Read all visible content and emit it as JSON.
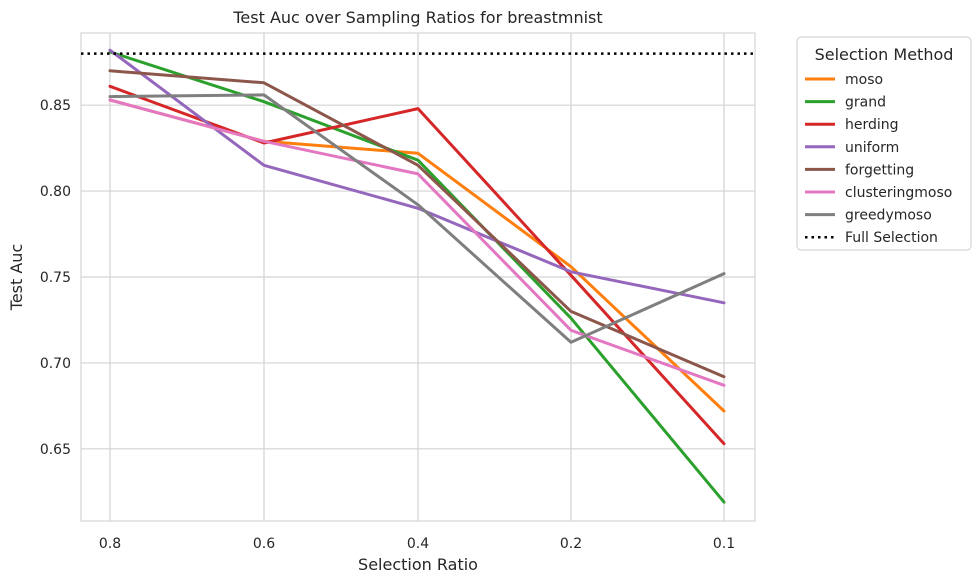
{
  "chart_data": {
    "type": "line",
    "title": "Test Auc over Sampling Ratios for breastmnist",
    "xlabel": "Selection Ratio",
    "ylabel": "Test Auc",
    "x": [
      "0.8",
      "0.6",
      "0.4",
      "0.2",
      "0.1"
    ],
    "ylim": [
      0.608,
      0.892
    ],
    "yticks": [
      "0.65",
      "0.70",
      "0.75",
      "0.80",
      "0.85"
    ],
    "grid": true,
    "legend_title": "Selection Method",
    "legend_position": "outside-right",
    "series": [
      {
        "name": "moso",
        "color": "#ff7f0e",
        "values": [
          0.853,
          0.829,
          0.822,
          0.756,
          0.672
        ]
      },
      {
        "name": "grand",
        "color": "#2ca02c",
        "values": [
          0.881,
          0.852,
          0.818,
          0.726,
          0.619
        ]
      },
      {
        "name": "herding",
        "color": "#d62728",
        "values": [
          0.861,
          0.828,
          0.848,
          0.751,
          0.653
        ]
      },
      {
        "name": "uniform",
        "color": "#9467bd",
        "values": [
          0.882,
          0.815,
          0.79,
          0.753,
          0.735
        ]
      },
      {
        "name": "forgetting",
        "color": "#8c564b",
        "values": [
          0.87,
          0.863,
          0.815,
          0.73,
          0.692
        ]
      },
      {
        "name": "clusteringmoso",
        "color": "#e377c2",
        "values": [
          0.853,
          0.829,
          0.81,
          0.719,
          0.687
        ]
      },
      {
        "name": "greedymoso",
        "color": "#7f7f7f",
        "values": [
          0.855,
          0.856,
          0.792,
          0.712,
          0.752
        ]
      }
    ],
    "reference_line": {
      "name": "Full Selection",
      "value": 0.88,
      "color": "#000000",
      "style": "dotted"
    }
  }
}
